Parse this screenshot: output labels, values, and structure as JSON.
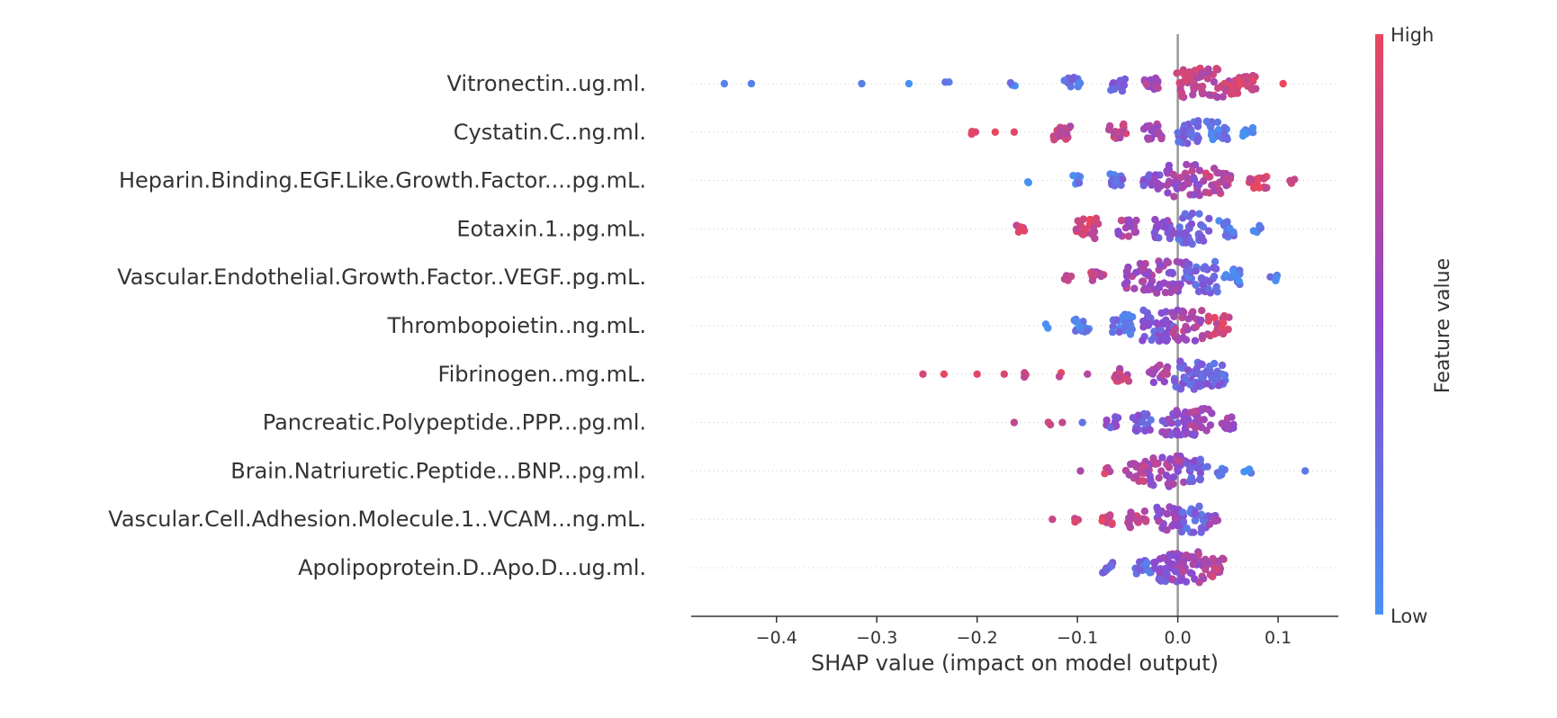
{
  "chart_data": {
    "type": "scatter",
    "xlabel": "SHAP value (impact on model output)",
    "xlim": [
      -0.485,
      0.16
    ],
    "x_ticks": [
      -0.4,
      -0.3,
      -0.2,
      -0.1,
      0.0,
      0.1
    ],
    "x_tick_labels": [
      "−0.4",
      "−0.3",
      "−0.2",
      "−0.1",
      "0.0",
      "0.1"
    ],
    "colorbar": {
      "title": "Feature value",
      "high_label": "High",
      "low_label": "Low",
      "high_color": "#e8475f",
      "low_color": "#4791f3"
    },
    "features": [
      {
        "name": "Vitronectin..ug.ml.",
        "clusters": [
          [
            -0.452,
            0.05,
            1
          ],
          [
            -0.425,
            0.05,
            1
          ],
          [
            -0.315,
            0.05,
            1
          ],
          [
            -0.268,
            0.05,
            1
          ],
          [
            -0.23,
            0.1,
            2
          ],
          [
            -0.165,
            0.1,
            3
          ],
          [
            -0.105,
            0.25,
            14
          ],
          [
            -0.06,
            0.35,
            14
          ],
          [
            -0.025,
            0.6,
            14
          ],
          [
            0.01,
            0.75,
            30
          ],
          [
            0.04,
            0.8,
            45
          ],
          [
            0.07,
            0.85,
            16
          ],
          [
            0.105,
            0.9,
            1
          ]
        ]
      },
      {
        "name": "Cystatin.C..ng.ml.",
        "clusters": [
          [
            -0.205,
            0.95,
            3
          ],
          [
            -0.182,
            0.9,
            1
          ],
          [
            -0.163,
            0.9,
            1
          ],
          [
            -0.115,
            0.85,
            16
          ],
          [
            -0.06,
            0.8,
            16
          ],
          [
            -0.025,
            0.6,
            16
          ],
          [
            0.01,
            0.25,
            24
          ],
          [
            0.04,
            0.15,
            22
          ],
          [
            0.07,
            0.1,
            8
          ]
        ]
      },
      {
        "name": "Heparin.Binding.EGF.Like.Growth.Factor....pg.mL.",
        "clusters": [
          [
            -0.15,
            0.05,
            2
          ],
          [
            -0.1,
            0.15,
            8
          ],
          [
            -0.06,
            0.25,
            12
          ],
          [
            -0.025,
            0.45,
            18
          ],
          [
            0.005,
            0.6,
            38
          ],
          [
            0.04,
            0.8,
            30
          ],
          [
            0.08,
            0.9,
            18
          ],
          [
            0.115,
            0.95,
            3
          ]
        ]
      },
      {
        "name": "Eotaxin.1..pg.mL.",
        "clusters": [
          [
            -0.157,
            0.95,
            5
          ],
          [
            -0.09,
            0.85,
            22
          ],
          [
            -0.05,
            0.65,
            18
          ],
          [
            -0.015,
            0.45,
            20
          ],
          [
            0.015,
            0.3,
            34
          ],
          [
            0.05,
            0.15,
            16
          ],
          [
            0.08,
            0.1,
            5
          ]
        ]
      },
      {
        "name": "Vascular.Endothelial.Growth.Factor..VEGF..pg.mL.",
        "clusters": [
          [
            -0.11,
            0.85,
            4
          ],
          [
            -0.08,
            0.75,
            12
          ],
          [
            -0.04,
            0.65,
            30
          ],
          [
            -0.005,
            0.55,
            38
          ],
          [
            0.025,
            0.3,
            36
          ],
          [
            0.055,
            0.15,
            16
          ],
          [
            0.095,
            0.1,
            4
          ]
        ]
      },
      {
        "name": "Thrombopoietin..ng.mL.",
        "clusters": [
          [
            -0.13,
            0.05,
            2
          ],
          [
            -0.095,
            0.1,
            14
          ],
          [
            -0.055,
            0.2,
            24
          ],
          [
            -0.02,
            0.4,
            34
          ],
          [
            0.01,
            0.65,
            34
          ],
          [
            0.04,
            0.85,
            22
          ]
        ]
      },
      {
        "name": "Fibrinogen..mg.mL.",
        "clusters": [
          [
            -0.254,
            0.95,
            1
          ],
          [
            -0.233,
            0.95,
            1
          ],
          [
            -0.2,
            0.95,
            1
          ],
          [
            -0.173,
            0.95,
            1
          ],
          [
            -0.155,
            0.95,
            3
          ],
          [
            -0.115,
            0.9,
            2
          ],
          [
            -0.09,
            0.85,
            1
          ],
          [
            -0.055,
            0.8,
            14
          ],
          [
            -0.02,
            0.6,
            18
          ],
          [
            0.01,
            0.35,
            34
          ],
          [
            0.035,
            0.3,
            26
          ]
        ]
      },
      {
        "name": "Pancreatic.Polypeptide..PPP...pg.ml.",
        "clusters": [
          [
            -0.163,
            0.95,
            1
          ],
          [
            -0.13,
            0.85,
            2
          ],
          [
            -0.115,
            0.9,
            1
          ],
          [
            -0.095,
            0.1,
            1
          ],
          [
            -0.065,
            0.4,
            10
          ],
          [
            -0.035,
            0.35,
            18
          ],
          [
            -0.005,
            0.5,
            28
          ],
          [
            0.02,
            0.6,
            30
          ],
          [
            0.05,
            0.55,
            12
          ]
        ]
      },
      {
        "name": "Brain.Natriuretic.Peptide...BNP...pg.ml.",
        "clusters": [
          [
            -0.097,
            0.7,
            1
          ],
          [
            -0.07,
            0.85,
            4
          ],
          [
            -0.04,
            0.75,
            24
          ],
          [
            -0.01,
            0.6,
            38
          ],
          [
            0.02,
            0.35,
            24
          ],
          [
            0.045,
            0.1,
            8
          ],
          [
            0.07,
            0.05,
            4
          ],
          [
            0.127,
            0.05,
            1
          ]
        ]
      },
      {
        "name": "Vascular.Cell.Adhesion.Molecule.1..VCAM...ng.mL.",
        "clusters": [
          [
            -0.125,
            0.95,
            1
          ],
          [
            -0.1,
            0.8,
            3
          ],
          [
            -0.07,
            0.85,
            8
          ],
          [
            -0.04,
            0.75,
            18
          ],
          [
            -0.01,
            0.5,
            28
          ],
          [
            0.015,
            0.3,
            28
          ],
          [
            0.035,
            0.5,
            8
          ]
        ]
      },
      {
        "name": "Apolipoprotein.D..Apo.D...ug.ml.",
        "clusters": [
          [
            -0.07,
            0.3,
            10
          ],
          [
            -0.035,
            0.25,
            14
          ],
          [
            -0.01,
            0.45,
            30
          ],
          [
            0.01,
            0.6,
            36
          ],
          [
            0.035,
            0.75,
            24
          ]
        ]
      }
    ]
  }
}
